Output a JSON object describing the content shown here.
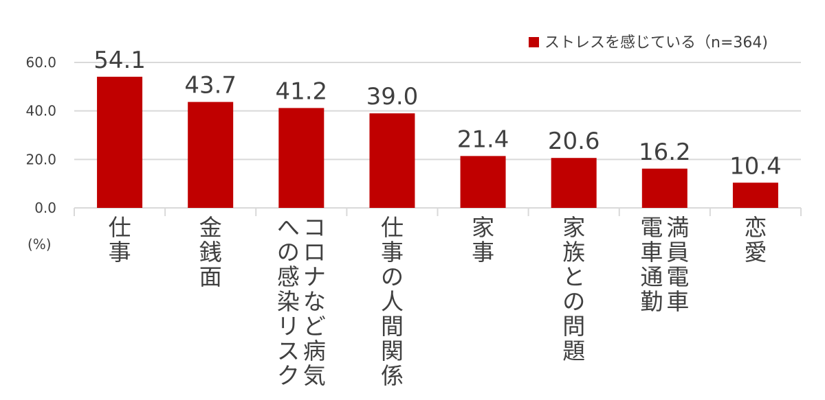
{
  "chart_data": {
    "type": "bar",
    "categories": [
      "仕事",
      "金銭面",
      "コロナなど病気への感染リスク",
      "仕事の人間関係",
      "家事",
      "家族との問題",
      "満員電車電車通勤",
      "恋愛"
    ],
    "category_lines": [
      [
        "仕事"
      ],
      [
        "金銭面"
      ],
      [
        "コロナなど病気",
        "への感染リスク"
      ],
      [
        "仕事の人間関係"
      ],
      [
        "家事"
      ],
      [
        "家族との問題"
      ],
      [
        "満員電車",
        "電車通勤"
      ],
      [
        "恋愛"
      ]
    ],
    "series": [
      {
        "name": "ストレスを感じている（n=364)",
        "values": [
          54.1,
          43.7,
          41.2,
          39.0,
          21.4,
          20.6,
          16.2,
          10.4
        ],
        "value_labels": [
          "54.1",
          "43.7",
          "41.2",
          "39.0",
          "21.4",
          "20.6",
          "16.2",
          "10.4"
        ],
        "color": "#C00000"
      }
    ],
    "y_ticks": [
      "0.0",
      "20.0",
      "40.0",
      "60.0"
    ],
    "ylim": [
      0,
      60
    ],
    "unit_label": "(%)",
    "grid": true,
    "legend_position": "top-right",
    "title": "",
    "xlabel": "",
    "ylabel": ""
  }
}
